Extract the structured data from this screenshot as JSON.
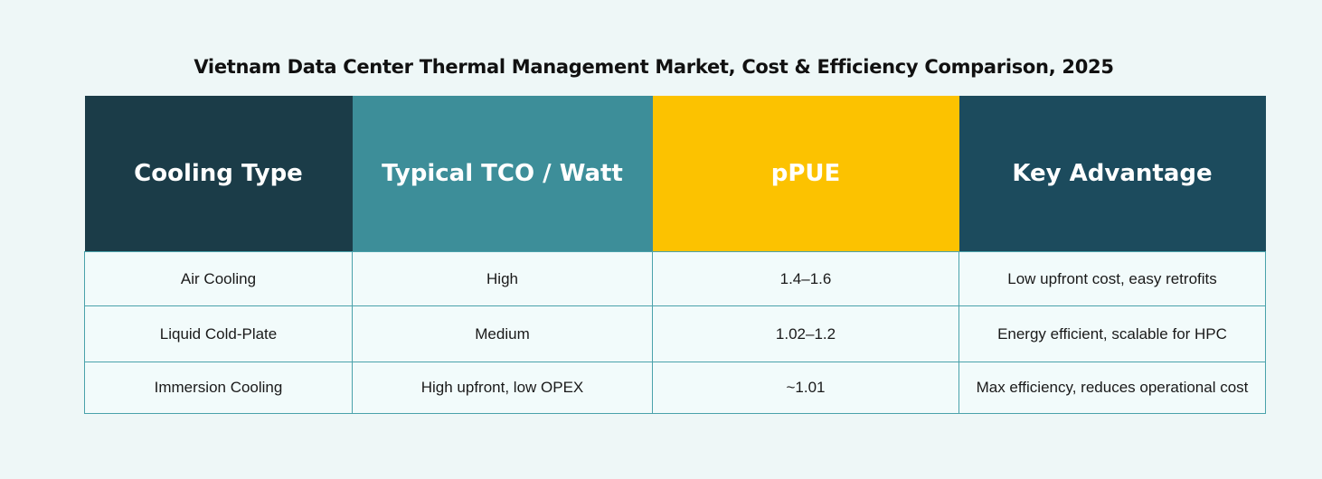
{
  "title": "Vietnam Data Center Thermal Management Market, Cost & Efficiency Comparison, 2025",
  "colors": {
    "page_background": "#eef7f7",
    "header_cooling_type": "#1b3c48",
    "header_tco": "#3d8e99",
    "header_ppue": "#fcc200",
    "header_key_advantage": "#1c4b5d",
    "cell_border": "#4aa2ab"
  },
  "table": {
    "headers": [
      "Cooling Type",
      "Typical TCO / Watt",
      "pPUE",
      "Key Advantage"
    ],
    "rows": [
      [
        "Air Cooling",
        "High",
        "1.4–1.6",
        "Low upfront cost, easy retrofits"
      ],
      [
        "Liquid Cold-Plate",
        "Medium",
        "1.02–1.2",
        "Energy efficient, scalable for HPC"
      ],
      [
        "Immersion Cooling",
        "High upfront, low OPEX",
        "~1.01",
        "Max efficiency, reduces operational cost"
      ]
    ]
  }
}
